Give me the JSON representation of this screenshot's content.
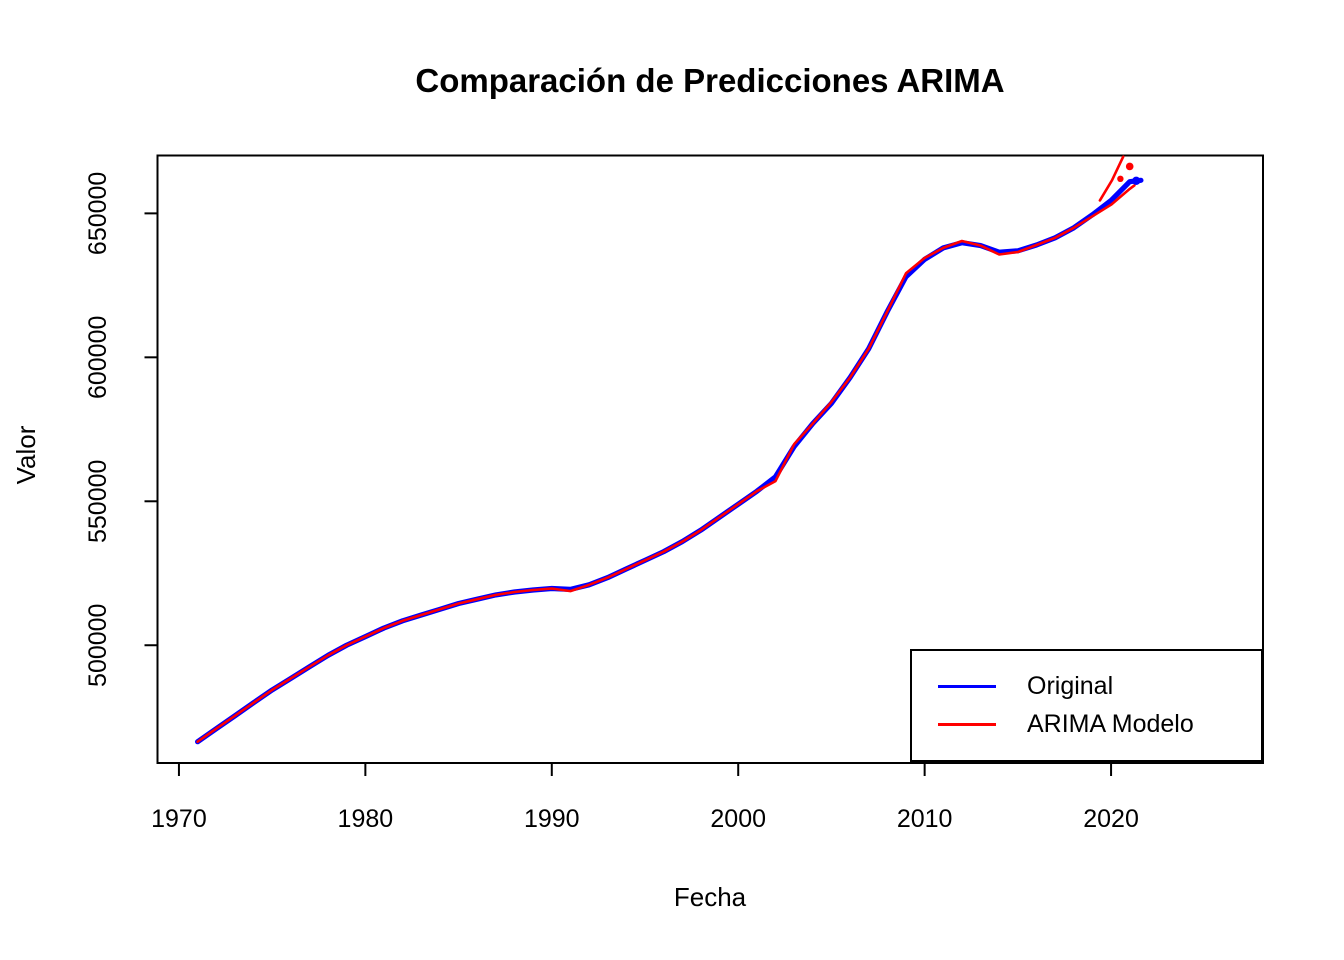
{
  "chart_data": {
    "type": "line",
    "title": "Comparación de Predicciones ARIMA",
    "xlabel": "Fecha",
    "ylabel": "Valor",
    "x_ticks": [
      1970,
      1980,
      1990,
      2000,
      2010,
      2020
    ],
    "y_ticks": [
      500000,
      550000,
      600000,
      650000
    ],
    "xlim": [
      1968.85,
      2028.15
    ],
    "ylim": [
      459100,
      670100
    ],
    "grid": false,
    "background": "#ffffff",
    "axis_color": "#000000",
    "legend_position": "bottom-right",
    "series": [
      {
        "name": "Original",
        "color": "#0000ff",
        "stroke_width": 5.2,
        "x": [
          1971,
          1972,
          1973,
          1974,
          1975,
          1976,
          1977,
          1978,
          1979,
          1980,
          1981,
          1982,
          1983,
          1984,
          1985,
          1986,
          1987,
          1988,
          1989,
          1990,
          1991,
          1992,
          1993,
          1994,
          1995,
          1996,
          1997,
          1998,
          1999,
          2000,
          2001,
          2002,
          2003,
          2004,
          2005,
          2006,
          2007,
          2008,
          2009,
          2010,
          2011,
          2012,
          2013,
          2014,
          2015,
          2016,
          2017,
          2018,
          2019,
          2020,
          2021,
          2021.6
        ],
        "values": [
          466500,
          471000,
          475500,
          480000,
          484500,
          488500,
          492500,
          496500,
          500000,
          503000,
          506000,
          508500,
          510500,
          512500,
          514500,
          516000,
          517500,
          518500,
          519200,
          519700,
          519400,
          521000,
          523500,
          526500,
          529500,
          532500,
          536000,
          540000,
          544500,
          549000,
          553500,
          558500,
          569000,
          577000,
          584000,
          593000,
          603000,
          616000,
          628000,
          634000,
          638000,
          639800,
          638800,
          636500,
          637000,
          639000,
          641500,
          645000,
          649500,
          654500,
          661000,
          661500
        ]
      },
      {
        "name": "ARIMA Modelo",
        "color": "#ff0000",
        "stroke_width": 2.6,
        "x": [
          1971,
          1972,
          1973,
          1974,
          1975,
          1976,
          1977,
          1978,
          1979,
          1980,
          1981,
          1982,
          1983,
          1984,
          1985,
          1986,
          1987,
          1988,
          1989,
          1990,
          1991,
          1992,
          1993,
          1994,
          1995,
          1996,
          1997,
          1998,
          1999,
          2000,
          2001,
          2002,
          2003,
          2004,
          2005,
          2006,
          2007,
          2008,
          2009,
          2010,
          2011,
          2012,
          2013,
          2014,
          2015,
          2016,
          2017,
          2018,
          2019,
          2020,
          2021,
          2021.25
        ],
        "values": [
          466500,
          471000,
          475500,
          480000,
          484500,
          488500,
          492500,
          496500,
          500000,
          503000,
          506000,
          508500,
          510500,
          512500,
          514500,
          516000,
          517500,
          518500,
          519200,
          519700,
          518800,
          521000,
          523500,
          526500,
          529500,
          532500,
          536000,
          540000,
          544500,
          549000,
          553500,
          557000,
          569800,
          577000,
          584500,
          593000,
          603000,
          616000,
          629200,
          634500,
          638000,
          640400,
          638800,
          635700,
          636600,
          639000,
          641500,
          645000,
          649000,
          653000,
          658500,
          659700
        ]
      }
    ],
    "forecast": {
      "upper_line": {
        "color": "#ff0000",
        "stroke_width": 2.6,
        "x": [
          2019.4,
          2020.05,
          2020.65
        ],
        "values": [
          654500,
          661500,
          669700
        ]
      },
      "points": [
        {
          "x": 2020.5,
          "value": 662000,
          "color": "#ff0000",
          "r": 3.2
        },
        {
          "x": 2021.0,
          "value": 666300,
          "color": "#ff0000",
          "r": 3.8
        }
      ],
      "last_observation_marker": {
        "x": 2021.35,
        "value": 661300,
        "color": "#0000ff",
        "r": 4.2
      }
    },
    "legend": {
      "entries": [
        {
          "label": "Original",
          "color": "#0000ff"
        },
        {
          "label": "ARIMA Modelo",
          "color": "#ff0000"
        }
      ]
    }
  }
}
